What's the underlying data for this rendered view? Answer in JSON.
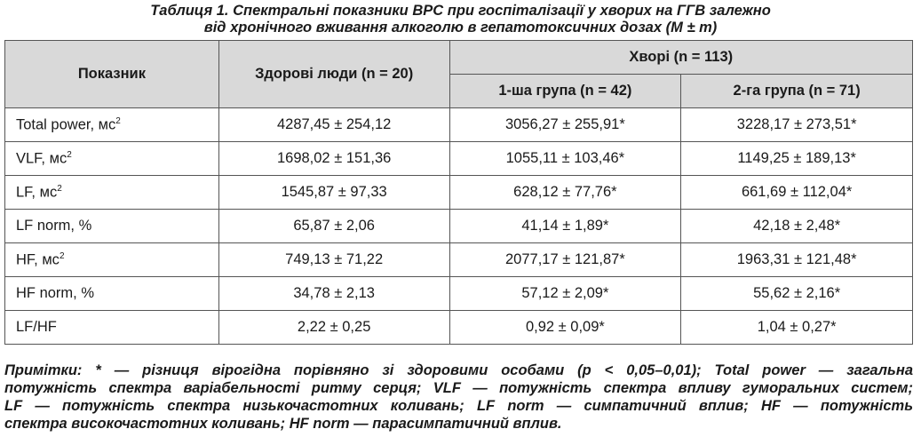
{
  "caption": {
    "line1": "Таблиця 1.  Спектральні показники ВРС при госпіталізації у хворих на ГГВ залежно",
    "line2": "від хронічного вживання алкоголю в гепатотоксичних дозах (М ± m)"
  },
  "table": {
    "headers": {
      "indicator": "Показник",
      "healthy": "Здорові люди (n = 20)",
      "patients": "Хворі (n = 113)",
      "group1": "1-ша група (n = 42)",
      "group2": "2-га група (n = 71)"
    },
    "rows": [
      {
        "name": "Total power, мс",
        "sup": "2",
        "healthy": "4287,45 ± 254,12",
        "g1": "3056,27 ± 255,91*",
        "g2": "3228,17 ± 273,51*"
      },
      {
        "name": "VLF, мс",
        "sup": "2",
        "healthy": "1698,02 ± 151,36",
        "g1": "1055,11 ± 103,46*",
        "g2": "1149,25 ± 189,13*"
      },
      {
        "name": "LF, мс",
        "sup": "2",
        "healthy": "1545,87 ± 97,33",
        "g1": "628,12 ± 77,76*",
        "g2": "661,69 ± 112,04*"
      },
      {
        "name": "LF norm, %",
        "sup": "",
        "healthy": "65,87 ± 2,06",
        "g1": "41,14 ± 1,89*",
        "g2": "42,18 ± 2,48*"
      },
      {
        "name": "HF, мс",
        "sup": "2",
        "healthy": "749,13 ± 71,22",
        "g1": "2077,17 ± 121,87*",
        "g2": "1963,31 ± 121,48*"
      },
      {
        "name": "HF norm, %",
        "sup": "",
        "healthy": "34,78 ± 2,13",
        "g1": "57,12 ± 2,09*",
        "g2": "55,62 ± 2,16*"
      },
      {
        "name": "LF/HF",
        "sup": "",
        "healthy": "2,22 ± 0,25",
        "g1": "0,92 ± 0,09*",
        "g2": "1,04 ± 0,27*"
      }
    ]
  },
  "notes": {
    "line1": "Примітки: * — різниця вірогідна порівняно зі здоровими особами (р < 0,05–0,01); Total power — загальна",
    "line2": "потужність спектра варіабельності ритму серця; VLF — потужність спектра впливу гуморальних систем;",
    "line3": "LF — потужність спектра низькочастотних коливань; LF norm — симпатичний вплив; HF — потужність",
    "line4": "спектра високочастотних коливань; HF norm — парасимпатичний вплив."
  }
}
